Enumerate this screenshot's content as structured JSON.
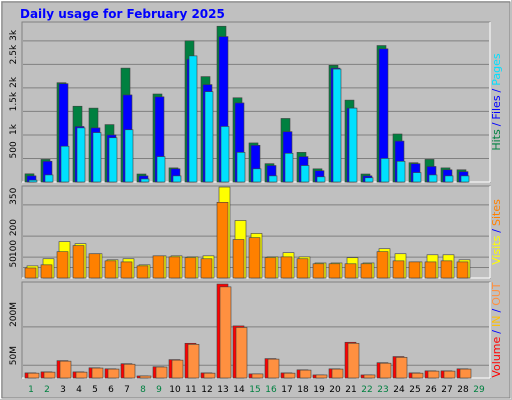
{
  "chart_data": [
    {
      "type": "bar",
      "title": "Daily usage for February 2025",
      "ylim": [
        0,
        3400
      ],
      "yticks": [
        500,
        {
          "value": 1000,
          "label": "1k"
        },
        {
          "value": 1500,
          "label": "1.5k"
        },
        {
          "value": 2000,
          "label": "2k"
        },
        {
          "value": 2500,
          "label": "2.5k"
        },
        {
          "value": 3000,
          "label": "3k"
        }
      ],
      "grid": true,
      "separator": "/",
      "series": [
        {
          "name": "Hits",
          "color": "#008040",
          "values": [
            174,
            480,
            2110,
            1610,
            1570,
            1220,
            2420,
            170,
            1870,
            300,
            3000,
            2240,
            3310,
            1790,
            830,
            390,
            1350,
            630,
            280,
            2480,
            1740,
            170,
            2900,
            1020,
            410,
            480,
            300,
            260,
            null
          ]
        },
        {
          "name": "Files",
          "color": "#0000ff",
          "values": [
            130,
            440,
            2090,
            1180,
            1150,
            1000,
            1850,
            130,
            1810,
            280,
            2610,
            2070,
            3090,
            1680,
            780,
            350,
            1070,
            540,
            240,
            2420,
            1570,
            130,
            2830,
            870,
            390,
            330,
            260,
            220,
            null
          ]
        },
        {
          "name": "Pages",
          "color": "#00e0ff",
          "values": [
            40,
            150,
            760,
            1150,
            1050,
            940,
            1110,
            65,
            540,
            130,
            2680,
            1920,
            1180,
            630,
            280,
            130,
            610,
            350,
            110,
            2400,
            1570,
            90,
            500,
            440,
            200,
            150,
            130,
            130,
            null
          ]
        }
      ]
    },
    {
      "type": "bar",
      "ylim": [
        0,
        440
      ],
      "yticks": [
        50,
        100,
        200,
        350
      ],
      "grid": true,
      "separator": "/",
      "series": [
        {
          "name": "Visits",
          "color": "#ffff00",
          "values": [
            58,
            92,
            174,
            164,
            116,
            87,
            92,
            63,
            106,
            106,
            101,
            106,
            435,
            275,
            213,
            101,
            121,
            101,
            72,
            72,
            97,
            72,
            140,
            116,
            77,
            111,
            111,
            87,
            null
          ]
        },
        {
          "name": "Sites",
          "color": "#ff8000",
          "values": [
            48,
            63,
            126,
            155,
            116,
            82,
            77,
            58,
            106,
            101,
            97,
            92,
            362,
            184,
            193,
            97,
            101,
            92,
            68,
            68,
            68,
            68,
            126,
            82,
            77,
            77,
            82,
            77,
            null
          ]
        }
      ]
    },
    {
      "type": "bar",
      "ylim": [
        0,
        376
      ],
      "yticks": [
        {
          "value": 50,
          "label": "50M"
        },
        {
          "value": 200,
          "label": "200M"
        }
      ],
      "grid": true,
      "separator": "/",
      "categories": [
        "1",
        "2",
        "3",
        "4",
        "5",
        "6",
        "7",
        "8",
        "9",
        "10",
        "11",
        "12",
        "13",
        "14",
        "15",
        "16",
        "17",
        "18",
        "19",
        "20",
        "21",
        "22",
        "23",
        "24",
        "25",
        "26",
        "27",
        "28",
        "29"
      ],
      "category_colors": [
        "#008040",
        "#008040",
        "#000000",
        "#000000",
        "#000000",
        "#000000",
        "#000000",
        "#008040",
        "#008040",
        "#000000",
        "#000000",
        "#000000",
        "#000000",
        "#000000",
        "#008040",
        "#008040",
        "#000000",
        "#000000",
        "#000000",
        "#000000",
        "#000000",
        "#008040",
        "#008040",
        "#000000",
        "#000000",
        "#000000",
        "#000000",
        "#000000",
        "#008040"
      ],
      "series": [
        {
          "name": "Volume",
          "color": "#ff0000",
          "values": [
            20,
            24,
            68,
            24,
            40,
            36,
            56,
            8,
            44,
            72,
            136,
            20,
            368,
            204,
            16,
            76,
            20,
            32,
            12,
            36,
            140,
            12,
            60,
            84,
            20,
            28,
            28,
            36,
            null
          ]
        },
        {
          "name": "IN",
          "color": "#ffc000",
          "values": [
            0,
            0,
            0,
            0,
            0,
            0,
            0,
            0,
            0,
            0,
            0,
            0,
            0,
            0,
            0,
            0,
            0,
            0,
            0,
            0,
            0,
            0,
            0,
            0,
            0,
            0,
            0,
            0,
            null
          ]
        },
        {
          "name": "OUT",
          "color": "#ff9040",
          "values": [
            19,
            23,
            66,
            23,
            39,
            35,
            54,
            8,
            43,
            70,
            132,
            19,
            357,
            198,
            16,
            74,
            19,
            31,
            12,
            35,
            136,
            12,
            58,
            81,
            19,
            27,
            27,
            35,
            null
          ]
        }
      ]
    }
  ]
}
